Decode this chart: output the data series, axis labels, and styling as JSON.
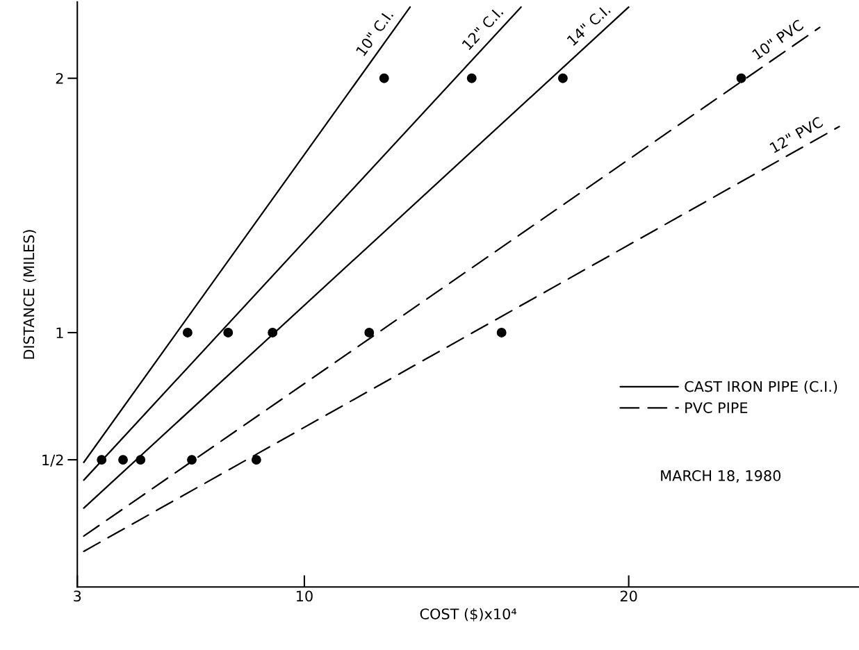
{
  "chart_data": {
    "type": "line",
    "xlabel": "COST ($)x10⁴",
    "ylabel": "DISTANCE (MILES)",
    "xlim": [
      3,
      27.1
    ],
    "ylim": [
      0,
      2.3
    ],
    "xticks": [
      3,
      10,
      20
    ],
    "yticks": [
      {
        "value": 0.5,
        "label": "1/2"
      },
      1,
      2
    ],
    "grid": false,
    "legend": "bottom right",
    "series": [
      {
        "name": "CAST IRON PIPE (C.I.)",
        "color": "#000000",
        "line_style": "solid",
        "marker": "none",
        "x": [
          3.2,
          13.26
        ],
        "values": [
          0.49,
          2.28
        ]
      },
      {
        "color": "#000000",
        "line_style": "solid",
        "marker": "none",
        "x": [
          3.2,
          16.68
        ],
        "values": [
          0.42,
          2.28
        ]
      },
      {
        "color": "#000000",
        "line_style": "solid",
        "marker": "none",
        "x": [
          3.2,
          20.0
        ],
        "values": [
          0.31,
          2.28
        ]
      },
      {
        "name": "PVC PIPE",
        "color": "#000000",
        "line_style": "dashed",
        "marker": "none",
        "x": [
          3.2,
          25.89
        ],
        "values": [
          0.2,
          2.2
        ]
      },
      {
        "color": "#000000",
        "line_style": "dashed",
        "marker": "none",
        "x": [
          3.2,
          26.49
        ],
        "values": [
          0.14,
          1.81
        ]
      },
      {
        "type": "scatter",
        "color": "#000000",
        "marker": "circle",
        "x": [
          3.75,
          6.4,
          12.46
        ],
        "values": [
          0.5,
          1,
          2
        ]
      },
      {
        "type": "scatter",
        "color": "#000000",
        "marker": "circle",
        "x": [
          4.41,
          7.65,
          15.16
        ],
        "values": [
          0.5,
          1,
          2
        ]
      },
      {
        "type": "scatter",
        "color": "#000000",
        "marker": "circle",
        "x": [
          4.95,
          9.02,
          17.97
        ],
        "values": [
          0.5,
          1,
          2
        ]
      },
      {
        "type": "scatter",
        "color": "#000000",
        "marker": "circle",
        "x": [
          6.53,
          12.0,
          23.47
        ],
        "values": [
          0.5,
          1,
          2
        ]
      },
      {
        "type": "scatter",
        "color": "#000000",
        "marker": "circle",
        "x": [
          8.52,
          16.08
        ],
        "values": [
          0.5,
          1
        ]
      }
    ],
    "annotations": [
      "10\" C.I.",
      "12\" C.I.",
      "14\" C.I.",
      "10\" PVC",
      "12\" PVC",
      "MARCH 18, 1980"
    ]
  }
}
